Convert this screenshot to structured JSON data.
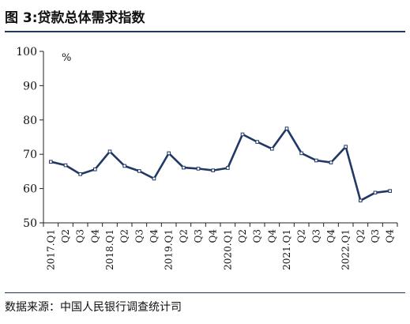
{
  "figure": {
    "title": "图 3:贷款总体需求指数",
    "source": "数据来源：中国人民银行调查统计司"
  },
  "chart_data": {
    "type": "line",
    "ylabel": "%",
    "ylim": [
      50,
      100
    ],
    "yticks": [
      50,
      60,
      70,
      80,
      90,
      100
    ],
    "grid": false,
    "legend": "none",
    "categories": [
      "2017.Q1",
      "Q2",
      "Q3",
      "Q4",
      "2018.Q1",
      "Q2",
      "Q3",
      "Q4",
      "2019.Q1",
      "Q2",
      "Q3",
      "Q4",
      "2020.Q1",
      "Q2",
      "Q3",
      "Q4",
      "2021.Q1",
      "Q2",
      "Q3",
      "Q4",
      "2022.Q1",
      "Q2",
      "Q3",
      "Q4"
    ],
    "series": [
      {
        "values": [
          67.8,
          66.8,
          64.2,
          65.6,
          70.8,
          66.6,
          65.1,
          62.9,
          70.3,
          66.1,
          65.8,
          65.3,
          66.0,
          75.8,
          73.6,
          71.6,
          77.5,
          70.3,
          68.2,
          67.6,
          72.2,
          56.5,
          58.8,
          59.3
        ],
        "color": "#1f3864"
      }
    ]
  }
}
